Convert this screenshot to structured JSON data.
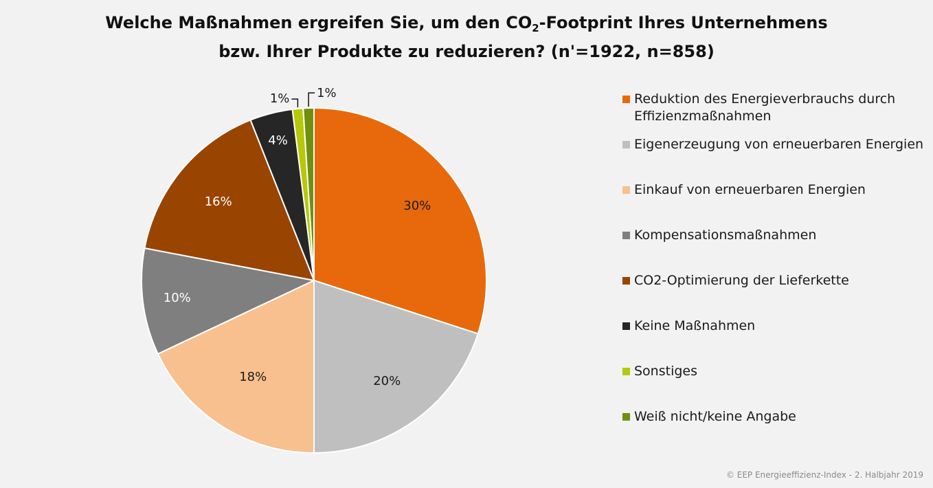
{
  "title": {
    "line1_before_sub": "Welche Maßnahmen ergreifen Sie, um den CO",
    "line1_sub": "2",
    "line1_after_sub": "-Footprint Ihres Unternehmens",
    "line2": "bzw. Ihrer Produkte zu reduzieren? (n'=1922, n=858)"
  },
  "copyright": "© EEP Energieeffizienz-Index - 2. Halbjahr 2019",
  "chart_data": {
    "type": "pie",
    "slices": [
      {
        "label": "Reduktion des Energieverbrauchs durch Effizienzmaßnahmen",
        "value": 30,
        "data_label": "30%",
        "color": "#e8690b",
        "label_color": "#1a1a1a"
      },
      {
        "label": "Eigenerzeugung von erneuerbaren Energien",
        "value": 20,
        "data_label": "20%",
        "color": "#bfbfbf",
        "label_color": "#1a1a1a"
      },
      {
        "label": "Einkauf von erneuerbaren Energien",
        "value": 18,
        "data_label": "18%",
        "color": "#f8c08f",
        "label_color": "#1a1a1a"
      },
      {
        "label": "Kompensationsmaßnahmen",
        "value": 10,
        "data_label": "10%",
        "color": "#7f7f7f",
        "label_color": "#ffffff"
      },
      {
        "label": "CO2-Optimierung der Lieferkette",
        "value": 16,
        "data_label": "16%",
        "color": "#994400",
        "label_color": "#ffffff"
      },
      {
        "label": "Keine Maßnahmen",
        "value": 4,
        "data_label": "4%",
        "color": "#262626",
        "label_color": "#ffffff"
      },
      {
        "label": "Sonstiges",
        "value": 1,
        "data_label": "1%",
        "color": "#b5c90a",
        "label_color": "#1a1a1a"
      },
      {
        "label": "Weiß nicht/keine Angabe",
        "value": 1,
        "data_label": "1%",
        "color": "#718f0f",
        "label_color": "#1a1a1a"
      }
    ],
    "legend_position": "right"
  }
}
